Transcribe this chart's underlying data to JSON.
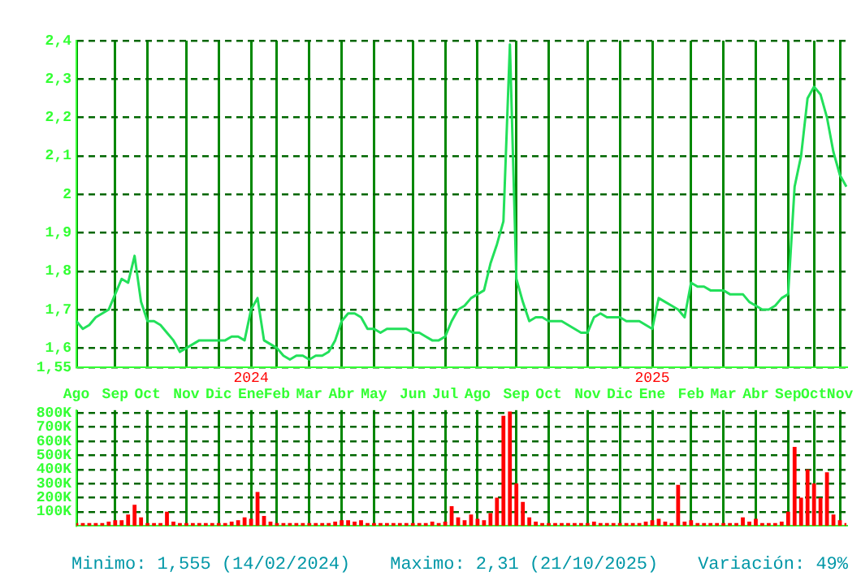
{
  "chart_data": [
    {
      "type": "line",
      "color": "#22e05a",
      "marker": "none",
      "grid": true,
      "categories": [
        "Ago",
        null,
        null,
        null,
        null,
        null,
        "Sep",
        null,
        null,
        null,
        null,
        "Oct",
        null,
        null,
        null,
        null,
        null,
        "Nov",
        null,
        null,
        null,
        null,
        "Dic",
        null,
        null,
        null,
        null,
        "2024\nEne",
        null,
        null,
        null,
        "Feb",
        null,
        null,
        null,
        null,
        "Mar",
        null,
        null,
        null,
        null,
        "Abr",
        null,
        null,
        null,
        null,
        "May",
        null,
        null,
        null,
        null,
        null,
        "Jun",
        null,
        null,
        null,
        null,
        "Jul",
        null,
        null,
        null,
        null,
        "Ago",
        null,
        null,
        null,
        null,
        null,
        "Sep",
        null,
        null,
        null,
        null,
        "Oct",
        null,
        null,
        null,
        null,
        null,
        "Nov",
        null,
        null,
        null,
        null,
        "Dic",
        null,
        null,
        null,
        null,
        "2025\nEne",
        null,
        null,
        null,
        null,
        null,
        "Feb",
        null,
        null,
        null,
        null,
        "Mar",
        null,
        null,
        null,
        null,
        "Abr",
        null,
        null,
        null,
        null,
        "Sep",
        null,
        null,
        null,
        "Oct",
        null,
        null,
        null,
        "Nov",
        null
      ],
      "values": [
        1.67,
        1.65,
        1.66,
        1.68,
        1.69,
        1.7,
        1.74,
        1.78,
        1.77,
        1.84,
        1.72,
        1.67,
        1.67,
        1.66,
        1.64,
        1.62,
        1.59,
        1.6,
        1.61,
        1.62,
        1.62,
        1.62,
        1.62,
        1.62,
        1.63,
        1.63,
        1.62,
        1.7,
        1.73,
        1.62,
        1.61,
        1.6,
        1.58,
        1.57,
        1.58,
        1.58,
        1.57,
        1.58,
        1.58,
        1.59,
        1.62,
        1.67,
        1.69,
        1.69,
        1.68,
        1.65,
        1.65,
        1.64,
        1.65,
        1.65,
        1.65,
        1.65,
        1.64,
        1.64,
        1.63,
        1.62,
        1.62,
        1.63,
        1.67,
        1.7,
        1.71,
        1.73,
        1.74,
        1.75,
        1.82,
        1.87,
        1.93,
        2.39,
        1.78,
        1.72,
        1.67,
        1.68,
        1.68,
        1.67,
        1.67,
        1.67,
        1.66,
        1.65,
        1.64,
        1.64,
        1.68,
        1.69,
        1.68,
        1.68,
        1.68,
        1.67,
        1.67,
        1.67,
        1.66,
        1.65,
        1.73,
        1.72,
        1.71,
        1.7,
        1.68,
        1.77,
        1.76,
        1.76,
        1.75,
        1.75,
        1.75,
        1.74,
        1.74,
        1.74,
        1.72,
        1.71,
        1.7,
        1.7,
        1.71,
        1.73,
        1.74,
        2.02,
        2.1,
        2.25,
        2.28,
        2.26,
        2.2,
        2.11,
        2.05,
        2.02
      ],
      "ylim": [
        1.55,
        2.4
      ],
      "yticks": [
        {
          "value": 1.55,
          "label": "1,55"
        },
        {
          "value": 1.6,
          "label": "1,6"
        },
        {
          "value": 1.7,
          "label": "1,7"
        },
        {
          "value": 1.8,
          "label": "1,8"
        },
        {
          "value": 1.9,
          "label": "1,9"
        },
        {
          "value": 2,
          "label": "2"
        },
        {
          "value": 2.1,
          "label": "2,1"
        },
        {
          "value": 2.2,
          "label": "2,2"
        },
        {
          "value": 2.3,
          "label": "2,3"
        },
        {
          "value": 2.4,
          "label": "2,4"
        }
      ],
      "annotations": [
        "Minimo: 1,555 (14/02/2024)",
        "Maximo: 2,31 (21/10/2025)",
        "Variación: 49%"
      ]
    },
    {
      "type": "bar",
      "color": "#ff0000",
      "grid": true,
      "tick_labels": "y",
      "categories": [
        null,
        null,
        null,
        null,
        null,
        null,
        null,
        null,
        null,
        null,
        null,
        null,
        null,
        null,
        null,
        null,
        null,
        null,
        null,
        null,
        null,
        null,
        null,
        null,
        null,
        null,
        null,
        null,
        null,
        null,
        null,
        null,
        null,
        null,
        null,
        null,
        null,
        null,
        null,
        null,
        null,
        null,
        null,
        null,
        null,
        null,
        null,
        null,
        null,
        null,
        null,
        null,
        null,
        null,
        null,
        null,
        null,
        null,
        null,
        null,
        null,
        null,
        null,
        null,
        null,
        null,
        null,
        null,
        null,
        null,
        null,
        null,
        null,
        null,
        null,
        null,
        null,
        null,
        null,
        null,
        null,
        null,
        null,
        null,
        null,
        null,
        null,
        null,
        null,
        null,
        null,
        null,
        null,
        null,
        null,
        null,
        null,
        null,
        null,
        null,
        null,
        null,
        null,
        null,
        null,
        null,
        null,
        null,
        null,
        null,
        null,
        null,
        null,
        null,
        null,
        null,
        null,
        null,
        null,
        null
      ],
      "values": [
        20000,
        20000,
        20000,
        20000,
        20000,
        30000,
        40000,
        40000,
        80000,
        150000,
        60000,
        20000,
        20000,
        20000,
        100000,
        30000,
        20000,
        20000,
        20000,
        20000,
        20000,
        20000,
        20000,
        20000,
        30000,
        40000,
        60000,
        50000,
        240000,
        70000,
        30000,
        20000,
        20000,
        20000,
        20000,
        20000,
        20000,
        20000,
        20000,
        20000,
        30000,
        40000,
        40000,
        30000,
        40000,
        20000,
        20000,
        20000,
        20000,
        20000,
        20000,
        20000,
        20000,
        20000,
        20000,
        30000,
        20000,
        30000,
        140000,
        60000,
        40000,
        80000,
        50000,
        40000,
        90000,
        200000,
        780000,
        810000,
        300000,
        170000,
        60000,
        30000,
        20000,
        20000,
        20000,
        20000,
        20000,
        20000,
        20000,
        20000,
        30000,
        20000,
        20000,
        20000,
        20000,
        20000,
        20000,
        20000,
        30000,
        40000,
        50000,
        30000,
        20000,
        290000,
        30000,
        40000,
        20000,
        20000,
        20000,
        20000,
        20000,
        20000,
        20000,
        60000,
        30000,
        50000,
        20000,
        20000,
        20000,
        30000,
        100000,
        560000,
        200000,
        400000,
        300000,
        200000,
        380000,
        80000,
        40000,
        20000
      ],
      "ylim": [
        0,
        820000
      ],
      "yticks": [
        {
          "value": 100000,
          "label": "100K"
        },
        {
          "value": 200000,
          "label": "200K"
        },
        {
          "value": 300000,
          "label": "300K"
        },
        {
          "value": 400000,
          "label": "400K"
        },
        {
          "value": 500000,
          "label": "500K"
        },
        {
          "value": 600000,
          "label": "600K"
        },
        {
          "value": 700000,
          "label": "700K"
        },
        {
          "value": 800000,
          "label": "800K"
        }
      ]
    }
  ]
}
